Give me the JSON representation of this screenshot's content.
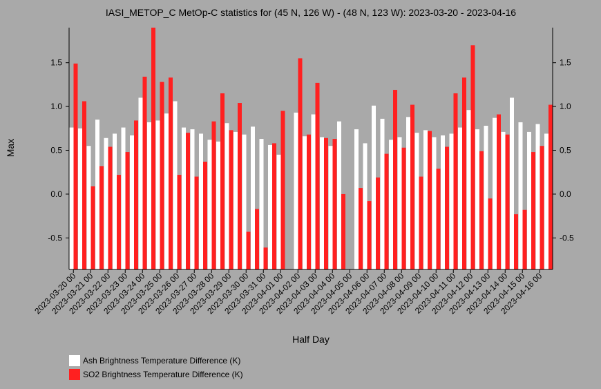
{
  "chart_data": {
    "type": "bar",
    "title": "IASI_METOP_C MetOp-C statistics for (45 N, 126 W) - (48 N, 123 W): 2023-03-20 - 2023-04-16",
    "xlabel": "Half Day",
    "ylabel": "Max",
    "ylim": [
      -0.86,
      1.9
    ],
    "yticks": [
      -0.5,
      0.0,
      0.5,
      1.0,
      1.5
    ],
    "ytick_labels": [
      "-0.5",
      "0.0",
      "0.5",
      "1.0",
      "1.5"
    ],
    "xtick_labels": [
      "2023-03-20 00",
      "2023-03-21 00",
      "2023-03-22 00",
      "2023-03-23 00",
      "2023-03-24 00",
      "2023-03-25 00",
      "2023-03-26 00",
      "2023-03-27 00",
      "2023-03-28 00",
      "2023-03-29 00",
      "2023-03-30 00",
      "2023-03-31 00",
      "2023-04-01 00",
      "2023-04-02 00",
      "2023-04-03 00",
      "2023-04-04 00",
      "2023-04-05 00",
      "2023-04-06 00",
      "2023-04-07 00",
      "2023-04-08 00",
      "2023-04-09 00",
      "2023-04-10 00",
      "2023-04-11 00",
      "2023-04-12 00",
      "2023-04-13 00",
      "2023-04-14 00",
      "2023-04-15 00",
      "2023-04-16 00"
    ],
    "grid": false,
    "legend_position": "bottom-left",
    "series": [
      {
        "name": "Ash Brightness Temperature Difference (K)",
        "color": "#ffffff",
        "values": [
          0.76,
          0.75,
          0.55,
          0.85,
          0.64,
          0.69,
          0.76,
          0.67,
          1.1,
          0.82,
          0.84,
          0.92,
          1.06,
          0.76,
          0.74,
          0.69,
          0.62,
          0.6,
          0.81,
          0.71,
          0.68,
          0.77,
          0.63,
          0.56,
          0.45,
          null,
          0.93,
          0.66,
          0.91,
          0.65,
          0.55,
          0.83,
          null,
          0.74,
          0.58,
          1.01,
          0.86,
          0.62,
          0.65,
          0.88,
          0.7,
          0.73,
          0.65,
          0.67,
          0.69,
          0.76,
          0.96,
          0.74,
          0.78,
          0.87,
          0.71,
          1.1,
          0.82,
          0.71,
          0.8,
          0.69
        ]
      },
      {
        "name": "SO2 Brightness Temperature Difference (K)",
        "color": "#ff2020",
        "values": [
          1.49,
          1.06,
          0.09,
          0.32,
          0.54,
          0.22,
          0.48,
          0.84,
          1.34,
          1.9,
          1.28,
          1.33,
          0.22,
          0.7,
          0.2,
          0.37,
          0.83,
          1.15,
          0.73,
          1.04,
          -0.43,
          -0.17,
          -0.61,
          0.58,
          0.95,
          null,
          1.55,
          0.68,
          1.27,
          0.64,
          0.63,
          0.0,
          null,
          0.07,
          -0.08,
          0.19,
          0.46,
          1.19,
          0.53,
          1.02,
          0.2,
          0.72,
          0.29,
          0.54,
          1.15,
          1.33,
          1.7,
          0.49,
          -0.05,
          0.91,
          0.68,
          -0.23,
          -0.18,
          0.48,
          0.55,
          1.02
        ]
      }
    ]
  }
}
